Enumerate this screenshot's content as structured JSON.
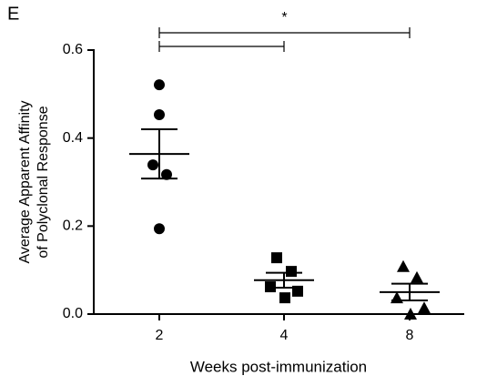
{
  "chart_data": {
    "type": "dot-mean-sem",
    "panel_label": "E",
    "x_label": "Weeks post-immunization",
    "y_label": [
      "Average Apparent Affinity",
      "of Polyclonal Response"
    ],
    "categories": [
      "2",
      "4",
      "8"
    ],
    "markers": [
      "circle",
      "square",
      "triangle"
    ],
    "color": "#000000",
    "groups": [
      [
        0.521,
        0.453,
        0.339,
        0.317,
        0.194
      ],
      [
        0.128,
        0.097,
        0.062,
        0.052,
        0.037
      ],
      [
        0.108,
        0.083,
        0.037,
        0.014,
        0.0
      ]
    ],
    "means": [
      0.364,
      0.077,
      0.05
    ],
    "errors": [
      0.056,
      0.017,
      0.019
    ],
    "ylim": [
      0,
      0.6
    ],
    "yticks": [
      {
        "value": 0,
        "label": "0.0"
      },
      0.2,
      0.4,
      0.6
    ],
    "annotations": [
      {
        "from": 0,
        "to": 2,
        "label": "*"
      },
      {
        "from": 0,
        "to": 1
      }
    ]
  }
}
